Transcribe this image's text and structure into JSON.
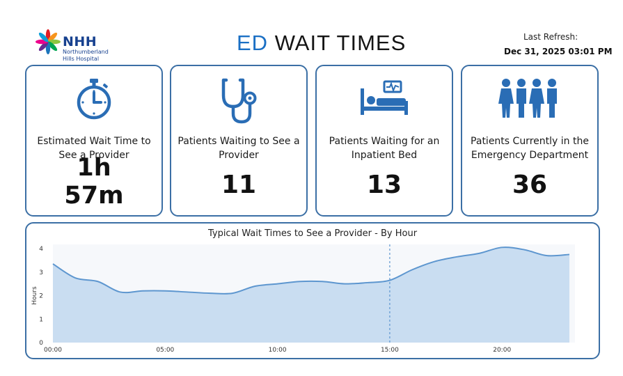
{
  "header": {
    "logo": {
      "abbr": "NHH",
      "name_line1": "Northumberland",
      "name_line2": "Hills Hospital",
      "petal_colors": [
        "#e31e24",
        "#f7941d",
        "#8dc63f",
        "#00a651",
        "#1c75bc",
        "#662d91",
        "#ec008c",
        "#0e9fd8"
      ]
    },
    "title_accent": "ED",
    "title_rest": "WAIT TIMES",
    "refresh_label": "Last Refresh:",
    "refresh_time": "Dec 31, 2025 03:01 PM"
  },
  "colors": {
    "accent": "#1a6fc4",
    "card_border": "#3b6fa5",
    "icon_blue": "#2a6db5",
    "area_fill": "#c9ddf1",
    "line": "#5d96cf"
  },
  "cards": [
    {
      "icon": "stopwatch-icon",
      "label": "Estimated Wait Time to See a Provider",
      "value": "1h 57m"
    },
    {
      "icon": "stethoscope-icon",
      "label": "Patients Waiting to See a Provider",
      "value": "11"
    },
    {
      "icon": "hospital-bed-icon",
      "label": "Patients Waiting for an Inpatient Bed",
      "value": "13"
    },
    {
      "icon": "people-group-icon",
      "label": "Patients Currently in the Emergency Department",
      "value": "36"
    }
  ],
  "chart_data": {
    "type": "area",
    "title": "Typical Wait Times to See a Provider - By Hour",
    "xlabel": "",
    "ylabel": "Hours",
    "x": [
      0,
      1,
      2,
      3,
      4,
      5,
      6,
      7,
      8,
      9,
      10,
      11,
      12,
      13,
      14,
      15,
      16,
      17,
      18,
      19,
      20,
      21,
      22,
      23
    ],
    "values": [
      3.35,
      2.75,
      2.6,
      2.15,
      2.2,
      2.2,
      2.15,
      2.1,
      2.1,
      2.4,
      2.5,
      2.6,
      2.6,
      2.5,
      2.55,
      2.65,
      3.1,
      3.45,
      3.65,
      3.8,
      4.05,
      3.95,
      3.7,
      3.75
    ],
    "xticks": [
      "00:00",
      "05:00",
      "10:00",
      "15:00",
      "20:00"
    ],
    "xtick_values": [
      0,
      5,
      10,
      15,
      20
    ],
    "yticks": [
      "0",
      "1",
      "2",
      "3",
      "4"
    ],
    "ylim": [
      0,
      4
    ],
    "xlim": [
      0,
      23
    ],
    "current_hour": 15,
    "grid": false
  }
}
